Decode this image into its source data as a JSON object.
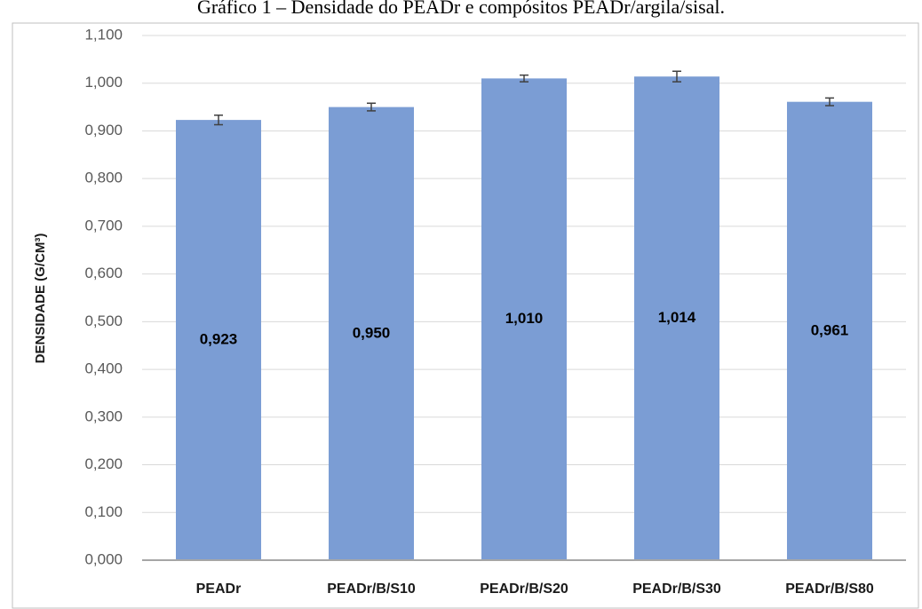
{
  "chart_data": {
    "type": "bar",
    "title": "Gráfico 1 – Densidade do PEADr e compósitos PEADr/argila/sisal.",
    "y_label": "DENSIDADE (G/CM³)",
    "categories": [
      "PEADr",
      "PEADr/B/S10",
      "PEADr/B/S20",
      "PEADr/B/S30",
      "PEADr/B/S80"
    ],
    "values": [
      0.923,
      0.95,
      1.01,
      1.014,
      0.961
    ],
    "value_labels": [
      "0,923",
      "0,950",
      "1,010",
      "1,014",
      "0,961"
    ],
    "errors": [
      0.01,
      0.008,
      0.007,
      0.011,
      0.008
    ],
    "color": "#7b9dd4",
    "ylim": [
      0,
      1.1
    ],
    "yticks": [
      {
        "value": 0,
        "label": "0,000"
      },
      {
        "value": 0.1,
        "label": "0,100"
      },
      {
        "value": 0.2,
        "label": "0,200"
      },
      {
        "value": 0.3,
        "label": "0,300"
      },
      {
        "value": 0.4,
        "label": "0,400"
      },
      {
        "value": 0.5,
        "label": "0,500"
      },
      {
        "value": 0.6,
        "label": "0,600"
      },
      {
        "value": 0.7,
        "label": "0,700"
      },
      {
        "value": 0.8,
        "label": "0,800"
      },
      {
        "value": 0.9,
        "label": "0,900"
      },
      {
        "value": 1.0,
        "label": "1,000"
      },
      {
        "value": 1.1,
        "label": "1,100"
      }
    ],
    "grid": true
  }
}
